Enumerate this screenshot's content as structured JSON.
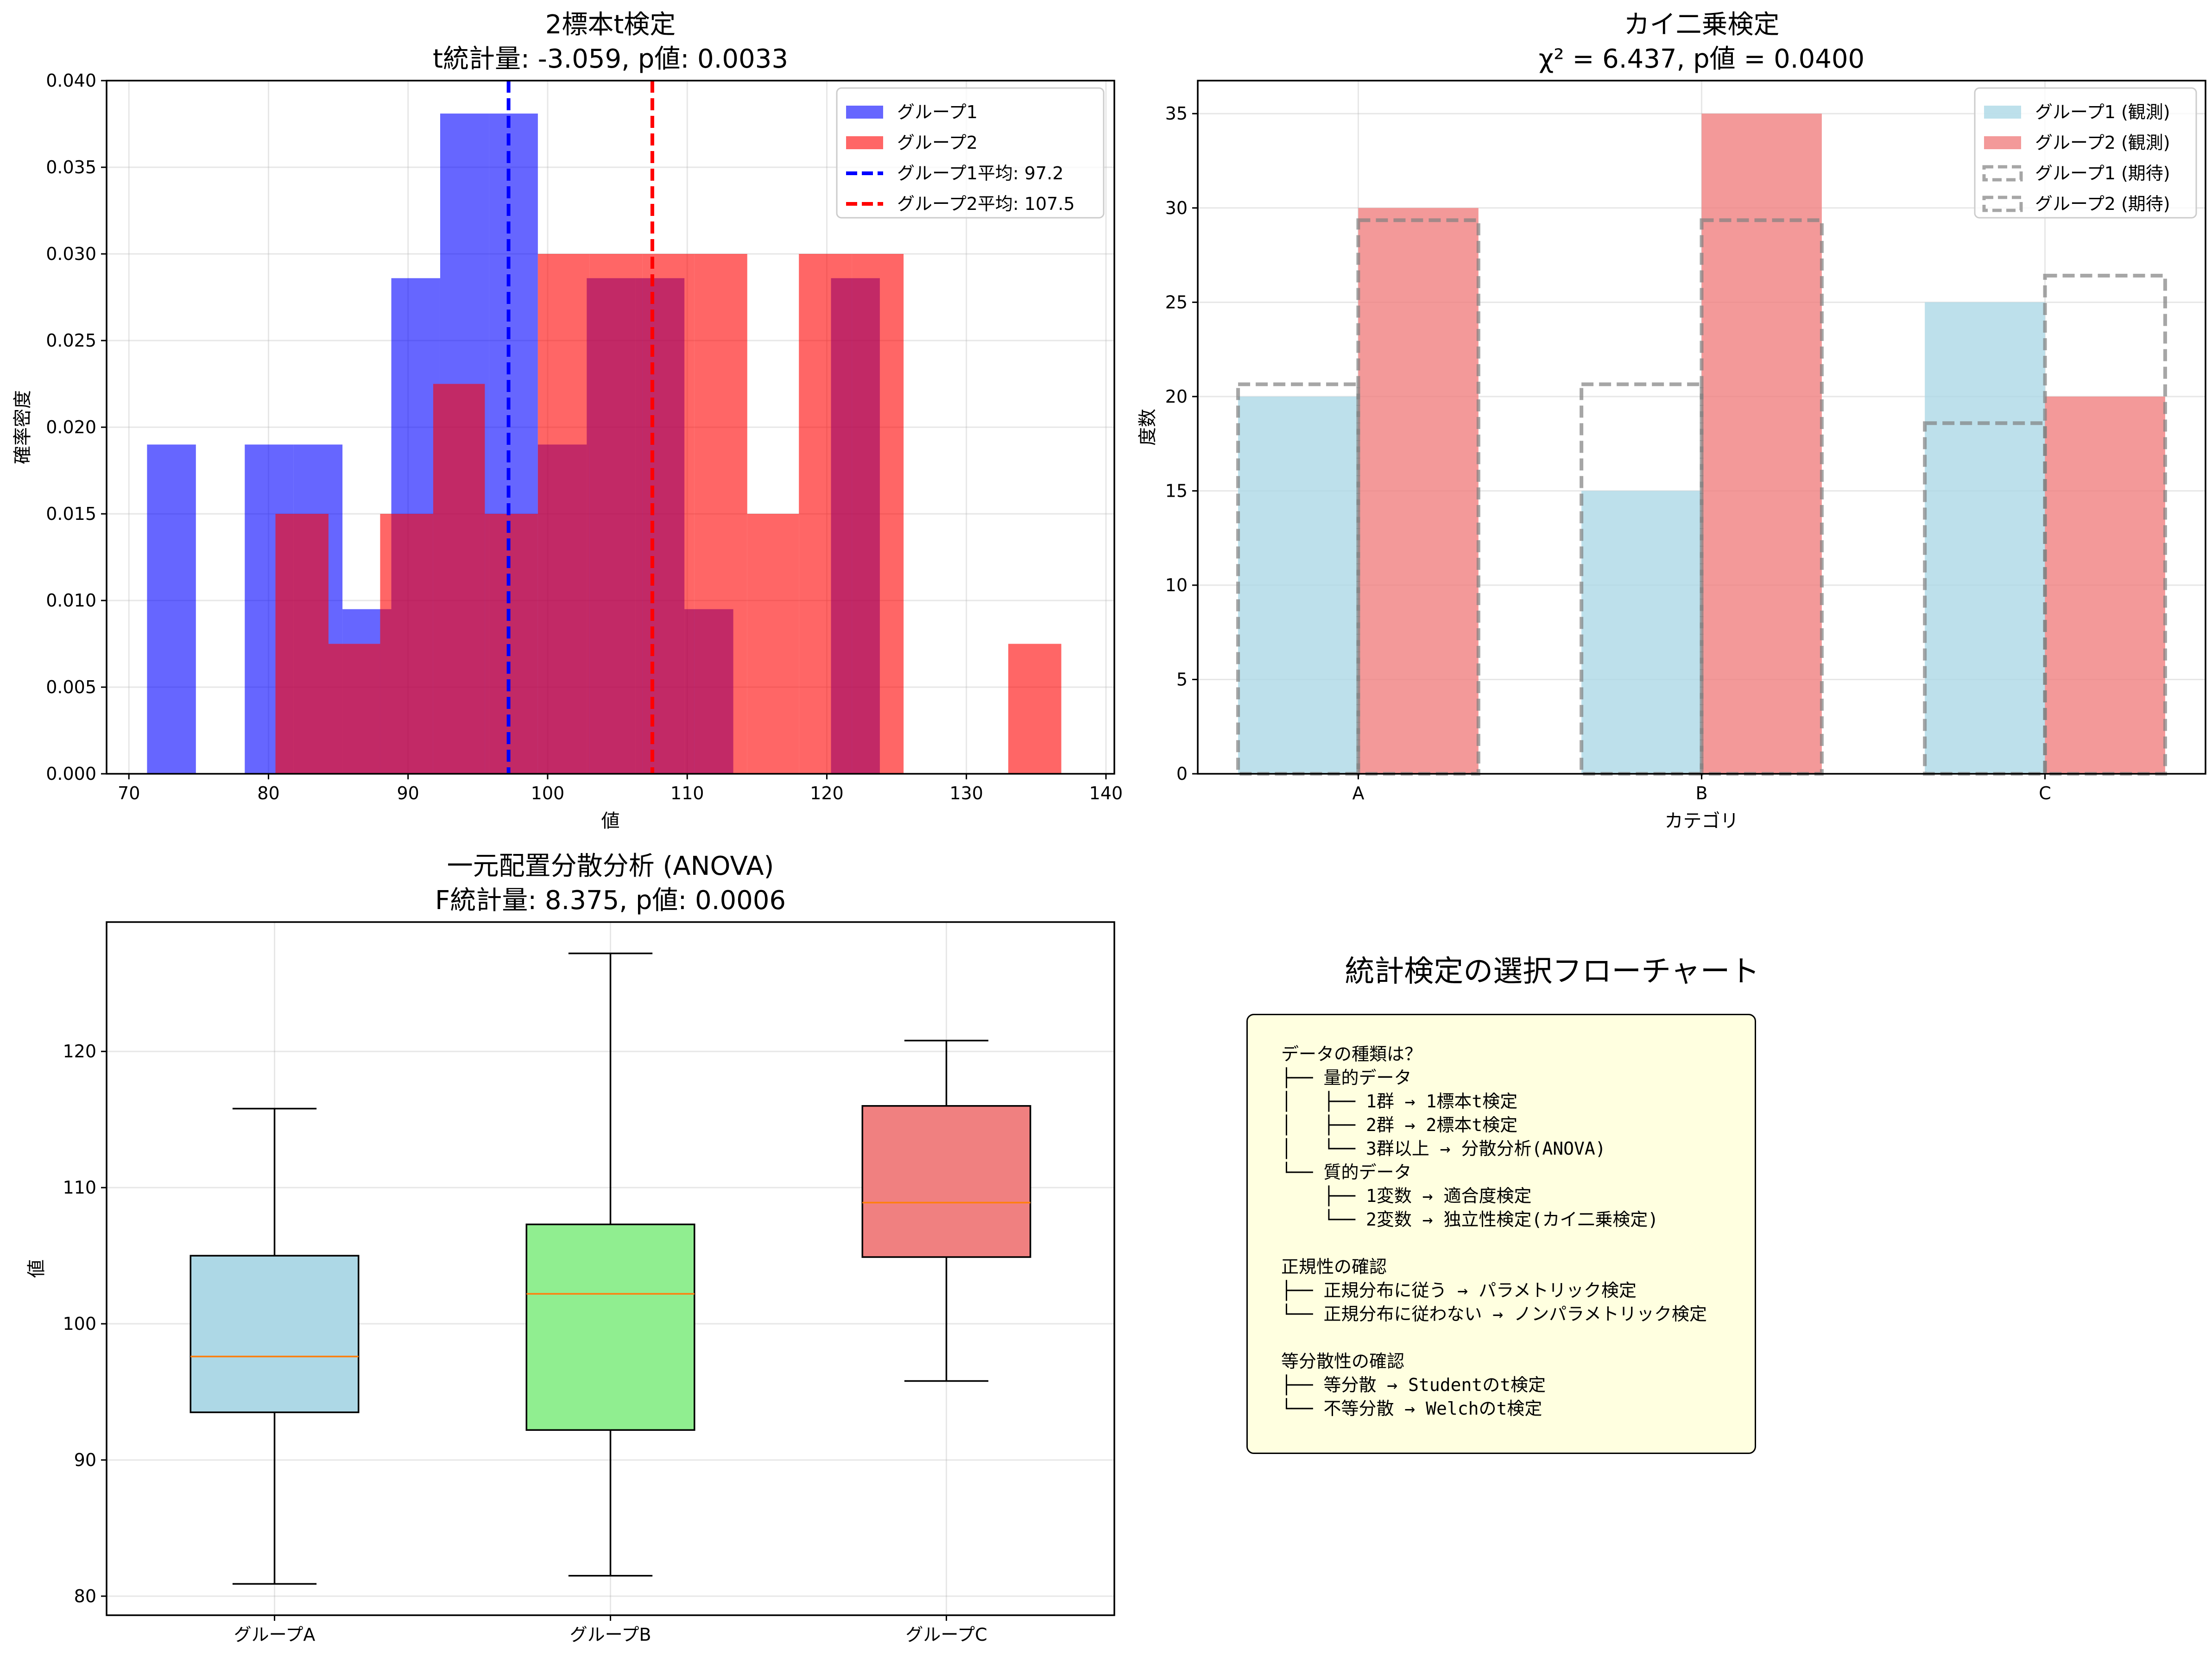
{
  "chart_data": [
    {
      "type": "histogram",
      "title": "2標本t検定\nt統計量: -3.059, p値: 0.0033",
      "xlabel": "値",
      "ylabel": "確率密度",
      "xlim": [
        68.4,
        140.6
      ],
      "ylim": [
        0,
        0.04
      ],
      "xticks": [
        70,
        80,
        90,
        100,
        110,
        120,
        130,
        140
      ],
      "yticks": [
        0.0,
        0.005,
        0.01,
        0.015,
        0.02,
        0.025,
        0.03,
        0.035,
        0.04
      ],
      "ytick_labels": [
        "0.000",
        "0.005",
        "0.010",
        "0.015",
        "0.020",
        "0.025",
        "0.030",
        "0.035",
        "0.040"
      ],
      "grid": true,
      "legend_position": "top-right",
      "series": [
        {
          "name": "グループ1",
          "color": "#0000ff",
          "alpha": 0.6,
          "bins": [
            [
              71.3,
              74.8,
              0.019
            ],
            [
              74.8,
              78.3,
              0.0
            ],
            [
              78.3,
              81.8,
              0.019
            ],
            [
              81.8,
              85.3,
              0.019
            ],
            [
              85.3,
              88.8,
              0.0095
            ],
            [
              88.8,
              92.3,
              0.0286
            ],
            [
              92.3,
              95.8,
              0.0381
            ],
            [
              95.8,
              99.3,
              0.0381
            ],
            [
              99.3,
              102.8,
              0.019
            ],
            [
              102.8,
              106.3,
              0.0286
            ],
            [
              106.3,
              109.8,
              0.0286
            ],
            [
              109.8,
              113.3,
              0.0095
            ],
            [
              113.3,
              116.8,
              0.0
            ],
            [
              116.8,
              120.3,
              0.0
            ],
            [
              120.3,
              123.8,
              0.0286
            ]
          ]
        },
        {
          "name": "グループ2",
          "color": "#ff0000",
          "alpha": 0.6,
          "bins": [
            [
              80.5,
              84.3,
              0.015
            ],
            [
              84.3,
              88.0,
              0.0075
            ],
            [
              88.0,
              91.8,
              0.015
            ],
            [
              91.8,
              95.5,
              0.0225
            ],
            [
              95.5,
              99.3,
              0.015
            ],
            [
              99.3,
              103.0,
              0.03
            ],
            [
              103.0,
              106.8,
              0.03
            ],
            [
              106.8,
              110.5,
              0.03
            ],
            [
              110.5,
              114.3,
              0.03
            ],
            [
              114.3,
              118.0,
              0.015
            ],
            [
              118.0,
              121.8,
              0.03
            ],
            [
              121.8,
              125.5,
              0.03
            ],
            [
              125.5,
              129.3,
              0.0
            ],
            [
              129.3,
              133.0,
              0.0
            ],
            [
              133.0,
              136.8,
              0.0075
            ]
          ]
        }
      ],
      "mean_lines": [
        {
          "name": "グループ1平均: 97.2",
          "value": 97.2,
          "color": "#0000ff"
        },
        {
          "name": "グループ2平均: 107.5",
          "value": 107.5,
          "color": "#ff0000"
        }
      ]
    },
    {
      "type": "bar",
      "title": "カイ二乗検定\nχ² = 6.437, p値 = 0.0400",
      "xlabel": "カテゴリ",
      "ylabel": "度数",
      "categories": [
        "A",
        "B",
        "C"
      ],
      "ylim": [
        0,
        36.75
      ],
      "yticks": [
        0,
        5,
        10,
        15,
        20,
        25,
        30,
        35
      ],
      "grid": true,
      "legend_position": "top-right",
      "series": [
        {
          "name": "グループ1 (観測)",
          "values": [
            20,
            15,
            25
          ],
          "color": "#add8e6",
          "alpha": 0.8
        },
        {
          "name": "グループ2 (観測)",
          "values": [
            30,
            35,
            20
          ],
          "color": "#f08080",
          "alpha": 0.8
        },
        {
          "name": "グループ1 (期待)",
          "values": [
            20.65,
            20.65,
            18.59
          ],
          "style": "dashed",
          "color": "#808080"
        },
        {
          "name": "グループ2 (期待)",
          "values": [
            29.35,
            29.35,
            26.41
          ],
          "style": "dashed",
          "color": "#808080"
        }
      ]
    },
    {
      "type": "box",
      "title": "一元配置分散分析 (ANOVA)\nF統計量: 8.375, p値: 0.0006",
      "ylabel": "値",
      "categories": [
        "グループA",
        "グループB",
        "グループC"
      ],
      "ylim": [
        78.6,
        129.5
      ],
      "yticks": [
        80,
        90,
        100,
        110,
        120
      ],
      "grid": true,
      "boxes": [
        {
          "name": "グループA",
          "whislo": 80.9,
          "q1": 93.5,
          "median": 97.6,
          "q3": 105.0,
          "whishi": 115.8,
          "color": "#add8e6"
        },
        {
          "name": "グループB",
          "whislo": 81.5,
          "q1": 92.2,
          "median": 102.2,
          "q3": 107.3,
          "whishi": 127.2,
          "color": "#90ee90"
        },
        {
          "name": "グループC",
          "whislo": 95.8,
          "q1": 104.9,
          "median": 108.9,
          "q3": 116.0,
          "whishi": 120.8,
          "color": "#f08080"
        }
      ]
    }
  ],
  "flowchart": {
    "title": "統計検定の選択フローチャート",
    "text": "データの種類は？\n├── 量的データ\n│   ├── 1群 → 1標本t検定\n│   ├── 2群 → 2標本t検定\n│   └── 3群以上 → 分散分析(ANOVA)\n└── 質的データ\n    ├── 1変数 → 適合度検定\n    └── 2変数 → 独立性検定(カイ二乗検定)\n\n正規性の確認\n├── 正規分布に従う → パラメトリック検定\n└── 正規分布に従わない → ノンパラメトリック検定\n\n等分散性の確認\n├── 等分散 → Studentのt検定\n└── 不等分散 → Welchのt検定"
  }
}
